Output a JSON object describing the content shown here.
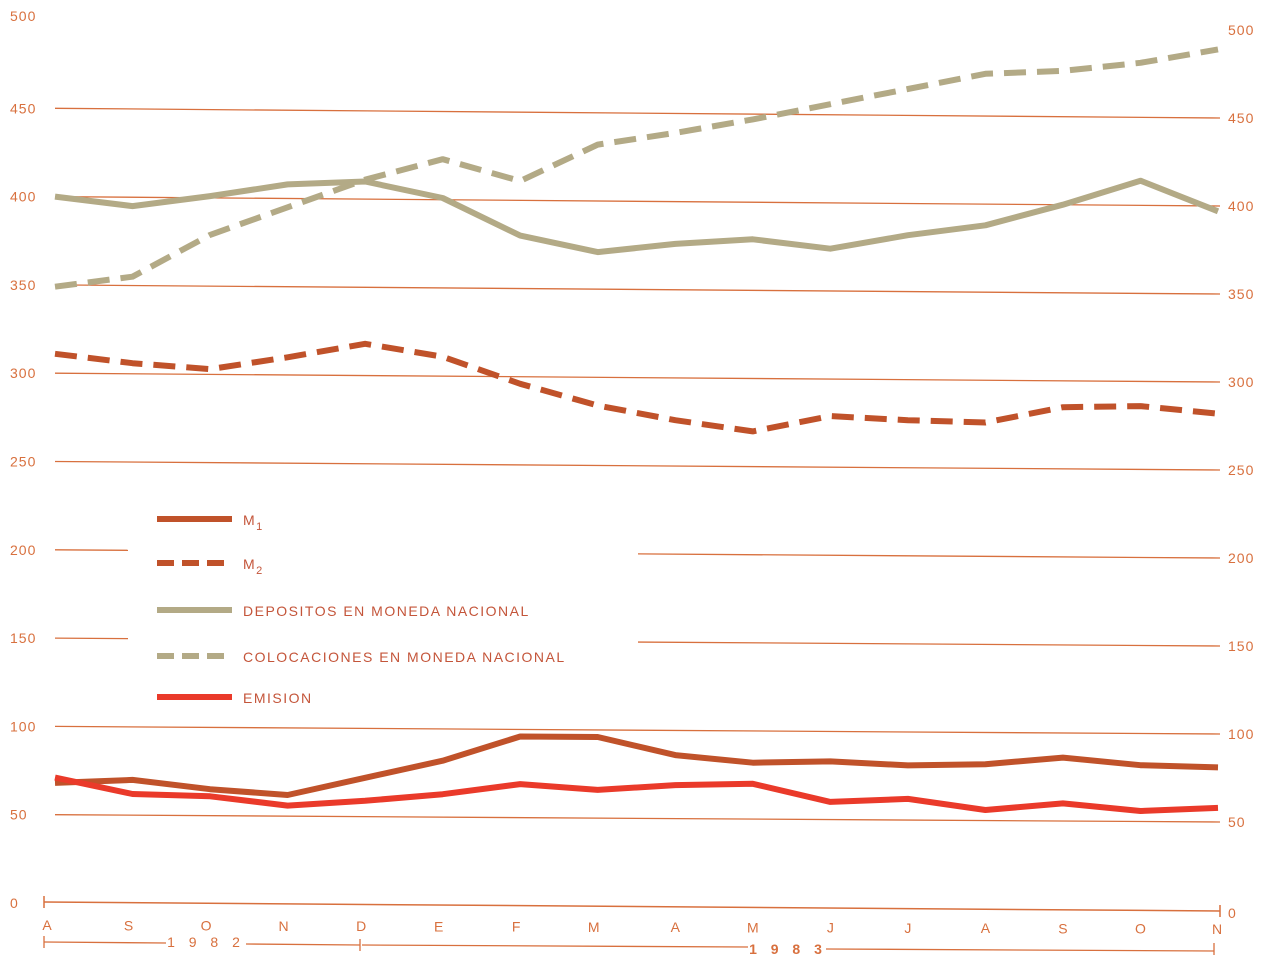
{
  "chart_data": {
    "type": "line",
    "x": [
      "A",
      "S",
      "O",
      "N",
      "D",
      "E",
      "F",
      "M",
      "A",
      "M",
      "J",
      "J",
      "A",
      "S",
      "O",
      "N"
    ],
    "year_labels": [
      "1 9 8 2",
      "1 9 8 3"
    ],
    "y_ticks_left": [
      "500",
      "450",
      "400",
      "350",
      "300",
      "250",
      "200",
      "150",
      "100",
      "50",
      "0"
    ],
    "y_ticks_right": [
      "500",
      "450",
      "400",
      "350",
      "300",
      "250",
      "200",
      "150",
      "100",
      "50",
      "0"
    ],
    "ylim": [
      0,
      500
    ],
    "grid": true,
    "legend_position": "center-left",
    "series": [
      {
        "name": "M",
        "subscript": "1",
        "style": "solid",
        "color": "#c0522a",
        "values": [
          68,
          70,
          65,
          62,
          72,
          82,
          96,
          96,
          86,
          82,
          83,
          81,
          82,
          86,
          82,
          81
        ]
      },
      {
        "name": "M",
        "subscript": "2",
        "style": "dashed",
        "color": "#c0522a",
        "values": [
          311,
          306,
          303,
          310,
          318,
          311,
          296,
          284,
          276,
          270,
          279,
          277,
          276,
          285,
          286,
          282
        ]
      },
      {
        "name": "DEPOSITOS EN MONEDA NACIONAL",
        "style": "solid",
        "color": "#b3aa86",
        "values": [
          400,
          395,
          401,
          408,
          410,
          401,
          380,
          371,
          376,
          379,
          374,
          382,
          388,
          400,
          414,
          397
        ]
      },
      {
        "name": "COLOCACIONES EN MONEDA NACIONAL",
        "style": "dashed",
        "color": "#b3aa86",
        "values": [
          349,
          355,
          379,
          395,
          411,
          423,
          411,
          432,
          439,
          447,
          456,
          465,
          474,
          476,
          481,
          489
        ]
      },
      {
        "name": "EMISION",
        "style": "solid",
        "color": "#ea3a2a",
        "values": [
          71,
          62,
          61,
          56,
          59,
          63,
          69,
          66,
          69,
          70,
          60,
          62,
          56,
          60,
          56,
          58
        ]
      }
    ]
  }
}
